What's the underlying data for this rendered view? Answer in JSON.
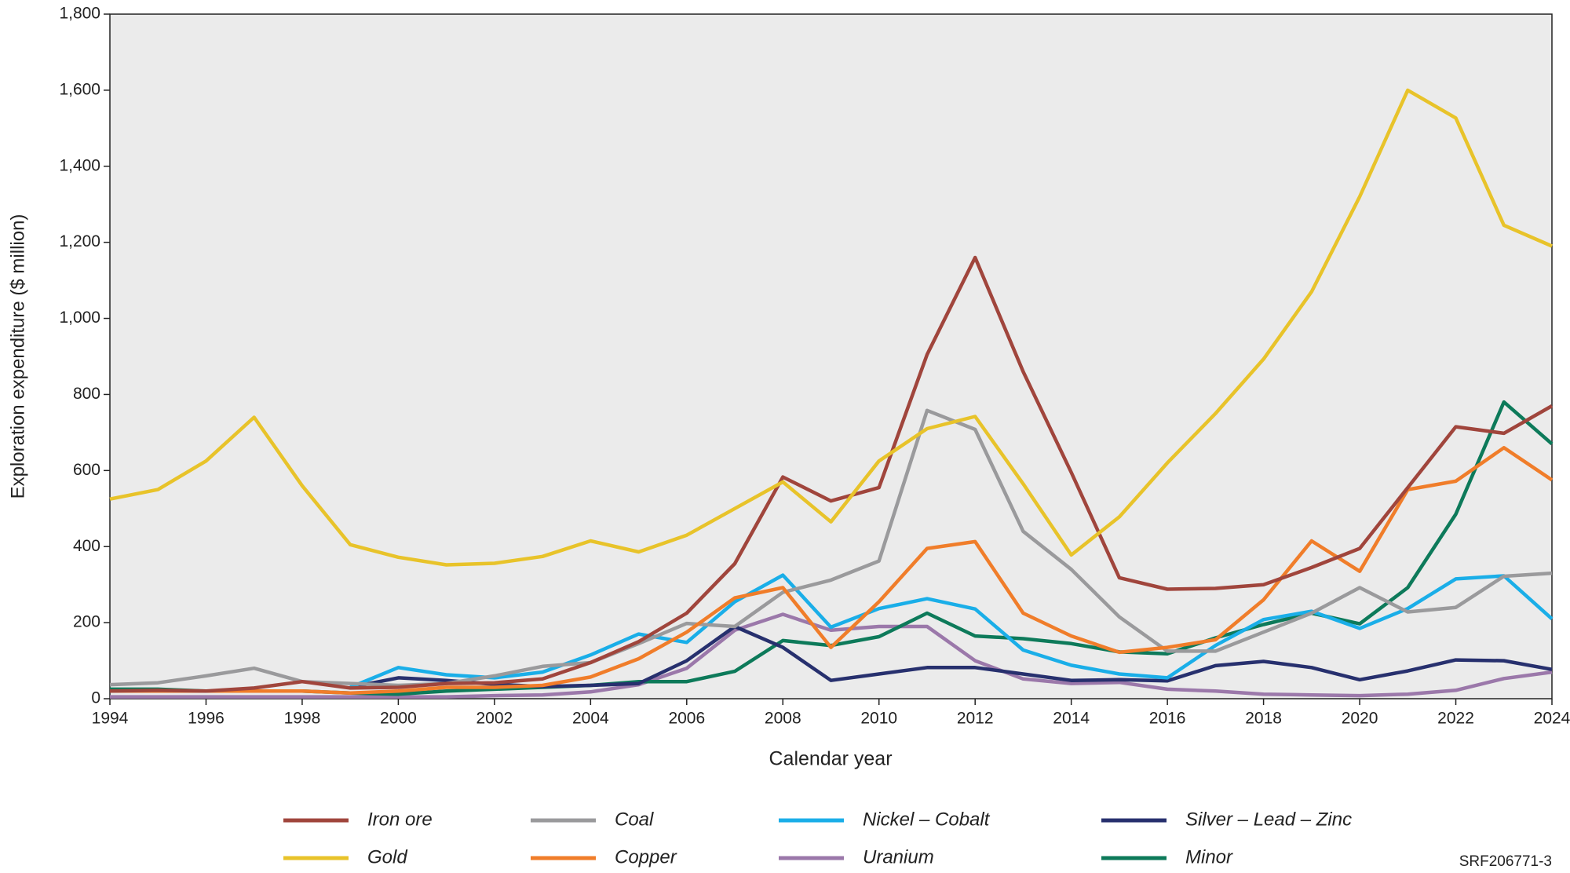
{
  "chart_data": {
    "type": "line",
    "x": [
      1994,
      1995,
      1996,
      1997,
      1998,
      1999,
      2000,
      2001,
      2002,
      2003,
      2004,
      2005,
      2006,
      2007,
      2008,
      2009,
      2010,
      2011,
      2012,
      2013,
      2014,
      2015,
      2016,
      2017,
      2018,
      2019,
      2020,
      2021,
      2022,
      2023,
      2024
    ],
    "xlabel": "Calendar year",
    "ylabel": "Exploration expenditure ($ million)",
    "xlim": [
      1994,
      2024
    ],
    "xticks": [
      1994,
      1996,
      1998,
      2000,
      2002,
      2004,
      2006,
      2008,
      2010,
      2012,
      2014,
      2016,
      2018,
      2020,
      2022,
      2024
    ],
    "ylim": [
      0,
      1800
    ],
    "yticks": [
      0,
      200,
      400,
      600,
      800,
      {
        "value": 1000,
        "label": "1,000"
      },
      {
        "value": 1200,
        "label": "1,200"
      },
      {
        "value": 1400,
        "label": "1,400"
      },
      {
        "value": 1600,
        "label": "1,600"
      },
      {
        "value": 1800,
        "label": "1,800"
      }
    ],
    "grid": false,
    "series": [
      {
        "name": "Iron ore",
        "color": "#a0453c",
        "values": [
          20,
          22,
          20,
          28,
          45,
          28,
          30,
          40,
          42,
          52,
          95,
          150,
          225,
          355,
          583,
          520,
          555,
          905,
          1160,
          860,
          595,
          318,
          288,
          290,
          300,
          345,
          395,
          555,
          715,
          698,
          770
        ]
      },
      {
        "name": "Coal",
        "color": "#9a9a9c",
        "values": [
          37,
          42,
          60,
          80,
          45,
          40,
          35,
          40,
          60,
          85,
          95,
          145,
          198,
          190,
          280,
          312,
          362,
          758,
          708,
          440,
          340,
          215,
          125,
          125,
          175,
          225,
          292,
          228,
          240,
          322,
          330
        ]
      },
      {
        "name": "Nickel – Cobalt",
        "color": "#1aaee8",
        "values": [
          null,
          null,
          null,
          null,
          null,
          30,
          82,
          63,
          55,
          70,
          115,
          170,
          148,
          255,
          325,
          188,
          237,
          263,
          236,
          128,
          88,
          65,
          55,
          140,
          208,
          230,
          185,
          237,
          315,
          323,
          210
        ]
      },
      {
        "name": "Silver – Lead – Zinc",
        "color": "#27306e",
        "values": [
          null,
          null,
          null,
          null,
          null,
          30,
          55,
          48,
          38,
          32,
          35,
          40,
          100,
          190,
          135,
          48,
          65,
          82,
          82,
          65,
          48,
          50,
          47,
          87,
          98,
          82,
          50,
          73,
          102,
          100,
          77
        ]
      },
      {
        "name": "Gold",
        "color": "#e8c32a",
        "values": [
          525,
          550,
          625,
          740,
          560,
          405,
          372,
          352,
          356,
          374,
          415,
          386,
          430,
          500,
          570,
          465,
          625,
          710,
          742,
          565,
          378,
          478,
          620,
          750,
          893,
          1070,
          1320,
          1600,
          1527,
          1245,
          1190
        ]
      },
      {
        "name": "Copper",
        "color": "#f07d2a",
        "values": [
          20,
          20,
          20,
          20,
          20,
          15,
          20,
          30,
          30,
          35,
          57,
          105,
          175,
          265,
          292,
          135,
          255,
          395,
          413,
          225,
          165,
          122,
          135,
          155,
          260,
          415,
          335,
          550,
          572,
          660,
          575
        ]
      },
      {
        "name": "Uranium",
        "color": "#9b78aa",
        "values": [
          5,
          5,
          5,
          5,
          5,
          5,
          5,
          5,
          8,
          10,
          18,
          37,
          80,
          180,
          222,
          180,
          190,
          190,
          100,
          52,
          40,
          43,
          25,
          20,
          12,
          10,
          8,
          12,
          22,
          53,
          70
        ]
      },
      {
        "name": "Minor",
        "color": "#0d7a5a",
        "values": [
          25,
          25,
          20,
          20,
          20,
          15,
          12,
          20,
          25,
          30,
          35,
          45,
          45,
          72,
          153,
          140,
          163,
          225,
          165,
          158,
          145,
          123,
          118,
          160,
          195,
          225,
          197,
          292,
          485,
          780,
          670
        ]
      }
    ],
    "footnote": "SRF206771-3"
  }
}
